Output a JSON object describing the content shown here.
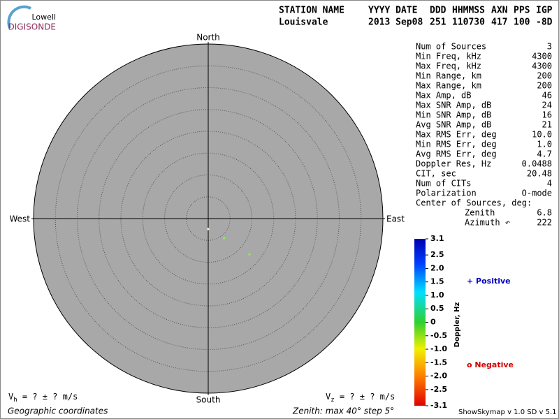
{
  "logo": {
    "top": "Lowell",
    "bottom": "DIGISONDE"
  },
  "header": {
    "labels": [
      "STATION NAME",
      "YYYY DATE",
      "DDD",
      "HHMMSS",
      "AXN",
      "PPS",
      "IGP"
    ],
    "values": [
      "Louisvale",
      "2013 Sep08",
      "251",
      "110730",
      "417",
      "100",
      "-8D"
    ]
  },
  "stats": [
    [
      "Num of Sources",
      "3"
    ],
    [
      "Min Freq, kHz",
      "4300"
    ],
    [
      "Max Freq, kHz",
      "4300"
    ],
    [
      "Min Range, km",
      "200"
    ],
    [
      "Max Range, km",
      "200"
    ],
    [
      "Max Amp, dB",
      "46"
    ],
    [
      "Max SNR Amp, dB",
      "24"
    ],
    [
      "Min SNR Amp, dB",
      "16"
    ],
    [
      "Avg SNR Amp, dB",
      "21"
    ],
    [
      "Max RMS Err, deg",
      "10.0"
    ],
    [
      "Min RMS Err, deg",
      "1.0"
    ],
    [
      "Avg RMS Err, deg",
      "4.7"
    ],
    [
      "Doppler Res, Hz",
      "0.0488"
    ],
    [
      "CIT, sec",
      "20.48"
    ],
    [
      "Num of CITs",
      "4"
    ],
    [
      "Polarization",
      "O-mode"
    ]
  ],
  "center": {
    "title": "Center of Sources, deg:",
    "zenith_label": "Zenith",
    "zenith": "6.8",
    "azimuth_label": "Azimuth ↶",
    "azimuth": "222"
  },
  "chart_data": {
    "type": "polar-scatter",
    "zenith_max": 40,
    "zenith_step": 5,
    "directions": {
      "north": "North",
      "south": "South",
      "west": "West",
      "east": "East"
    },
    "sources": [
      {
        "zenith": 2.4,
        "azimuth": 180,
        "color": "#e0ffd0"
      },
      {
        "zenith": 5.8,
        "azimuth": 141,
        "color": "#80f060"
      },
      {
        "zenith": 12.5,
        "azimuth": 131,
        "color": "#80f060"
      }
    ],
    "colorbar": {
      "title": "Doppler, Hz",
      "lim": [
        -3.1,
        3.1
      ],
      "ticks": [
        3.1,
        2.5,
        {
          "value": 2,
          "label": "2.0"
        },
        1.5,
        {
          "value": 1,
          "label": "1.0"
        },
        0.5,
        0,
        -0.5,
        {
          "value": -1,
          "label": "-1.0"
        },
        -1.5,
        {
          "value": -2,
          "label": "-2.0"
        },
        -2.5,
        -3.1
      ]
    },
    "positive": "+ Positive",
    "negative": "o Negative"
  },
  "footer": {
    "vh": [
      "V",
      "h",
      " =  ? ±  ? m/s"
    ],
    "vz": [
      "V",
      "z",
      " =  ? ±  ? m/s"
    ],
    "coords": "Geographic coordinates",
    "zenith": "Zenith: max 40°  step 5°",
    "version": "ShowSkymap v 1.0  SD v 5.1"
  }
}
